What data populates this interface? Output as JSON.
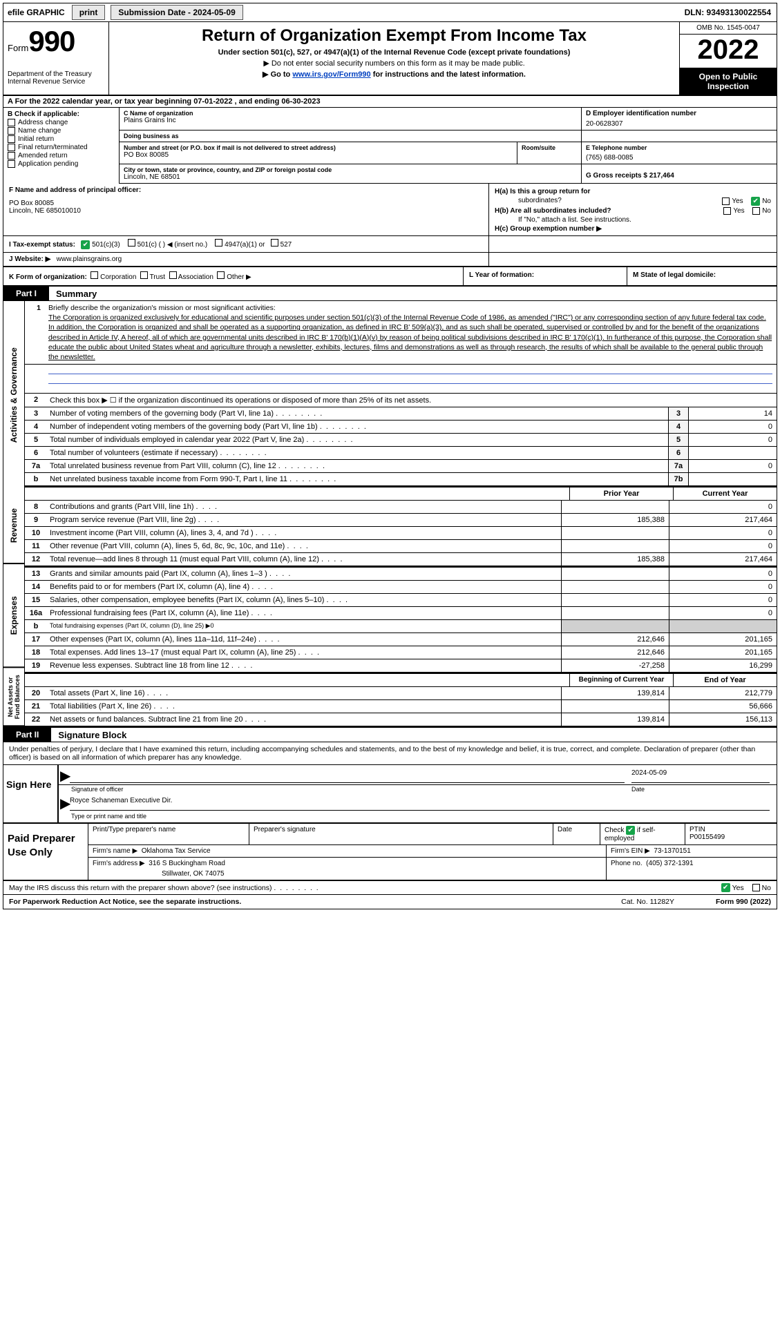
{
  "topbar": {
    "efile": "efile GRAPHIC",
    "print": "print",
    "sub_date_label": "Submission Date - 2024-05-09",
    "dln": "DLN: 93493130022554"
  },
  "header": {
    "form_prefix": "Form",
    "form_num": "990",
    "dept": "Department of the Treasury",
    "irs": "Internal Revenue Service",
    "title": "Return of Organization Exempt From Income Tax",
    "sub1": "Under section 501(c), 527, or 4947(a)(1) of the Internal Revenue Code (except private foundations)",
    "sub2_arrow": "▶ Do not enter social security numbers on this form as it may be made public.",
    "sub3_pre": "▶ Go to ",
    "sub3_link": "www.irs.gov/Form990",
    "sub3_post": " for instructions and the latest information.",
    "omb": "OMB No. 1545-0047",
    "year": "2022",
    "open": "Open to Public Inspection"
  },
  "row_a": "A For the 2022 calendar year, or tax year beginning 07-01-2022  , and ending 06-30-2023",
  "col_b": {
    "title": "B Check if applicable:",
    "items": [
      "Address change",
      "Name change",
      "Initial return",
      "Final return/terminated",
      "Amended return",
      "Application pending"
    ]
  },
  "col_c": {
    "name_lbl": "C Name of organization",
    "name": "Plains Grains Inc",
    "dba_lbl": "Doing business as",
    "dba": "",
    "street_lbl": "Number and street (or P.O. box if mail is not delivered to street address)",
    "street": "PO Box 80085",
    "room_lbl": "Room/suite",
    "city_lbl": "City or town, state or province, country, and ZIP or foreign postal code",
    "city": "Lincoln, NE  68501"
  },
  "col_d": {
    "ein_lbl": "D Employer identification number",
    "ein": "20-0628307",
    "tel_lbl": "E Telephone number",
    "tel": "(765) 688-0085",
    "gross_lbl": "G Gross receipts $ 217,464"
  },
  "row_f": {
    "lbl": "F  Name and address of principal officer:",
    "l1": "PO Box 80085",
    "l2": "Lincoln, NE  685010010"
  },
  "row_h": {
    "ha": "H(a)  Is this a group return for",
    "ha2": "subordinates?",
    "hb": "H(b)  Are all subordinates included?",
    "hb2": "If \"No,\" attach a list. See instructions.",
    "hc": "H(c)  Group exemption number ▶",
    "yes": "Yes",
    "no": "No"
  },
  "row_i": {
    "lbl": "I    Tax-exempt status:",
    "opts": [
      "501(c)(3)",
      "501(c) (  ) ◀ (insert no.)",
      "4947(a)(1) or",
      "527"
    ]
  },
  "row_j": {
    "lbl": "J   Website: ▶",
    "val": "www.plainsgrains.org"
  },
  "row_k": {
    "lbl": "K Form of organization:",
    "opts": [
      "Corporation",
      "Trust",
      "Association",
      "Other ▶"
    ],
    "l_lbl": "L Year of formation:",
    "l_val": "",
    "m_lbl": "M State of legal domicile:",
    "m_val": ""
  },
  "part1": {
    "tab": "Part I",
    "title": "Summary"
  },
  "side_labels": {
    "ag": "Activities & Governance",
    "rev": "Revenue",
    "exp": "Expenses",
    "na": "Net Assets or Fund Balances"
  },
  "mission": {
    "intro_num": "1",
    "intro": "Briefly describe the organization's mission or most significant activities:",
    "text": "The Corporation is organized exclusively for educational and scientific purposes under section 501(c)(3) of the Internal Revenue Code of 1986, as amended (\"IRC\") or any corresponding section of any future federal tax code. In addition, the Corporation is organized and shall be operated as a supporting organization, as defined in IRC B' 509(a)(3), and as such shall be operated, supervised or controlled by and for the benefit of the organizations described in Article IV, A hereof, all of which are governmental units described in IRC B' 170(b)(1)(A)(v) by reason of being political subdivisions described in IRC B' 170(c)(1). In furtherance of this purpose, the Corporation shall educate the public about United States wheat and agriculture through a newsletter, exhibits, lectures, films and demonstrations as well as through research, the results of which shall be available to the general public through the newsletter."
  },
  "lines_ag": [
    {
      "n": "2",
      "t": "Check this box ▶ ☐ if the organization discontinued its operations or disposed of more than 25% of its net assets."
    },
    {
      "n": "3",
      "t": "Number of voting members of the governing body (Part VI, line 1a)",
      "box": "3",
      "v": "14"
    },
    {
      "n": "4",
      "t": "Number of independent voting members of the governing body (Part VI, line 1b)",
      "box": "4",
      "v": "0"
    },
    {
      "n": "5",
      "t": "Total number of individuals employed in calendar year 2022 (Part V, line 2a)",
      "box": "5",
      "v": "0"
    },
    {
      "n": "6",
      "t": "Total number of volunteers (estimate if necessary)",
      "box": "6",
      "v": ""
    },
    {
      "n": "7a",
      "t": "Total unrelated business revenue from Part VIII, column (C), line 12",
      "box": "7a",
      "v": "0"
    },
    {
      "n": "b",
      "t": "Net unrelated business taxable income from Form 990-T, Part I, line 11",
      "box": "7b",
      "v": ""
    }
  ],
  "colhdr": {
    "prior": "Prior Year",
    "current": "Current Year"
  },
  "lines_rev": [
    {
      "n": "8",
      "t": "Contributions and grants (Part VIII, line 1h)",
      "p": "",
      "c": "0"
    },
    {
      "n": "9",
      "t": "Program service revenue (Part VIII, line 2g)",
      "p": "185,388",
      "c": "217,464"
    },
    {
      "n": "10",
      "t": "Investment income (Part VIII, column (A), lines 3, 4, and 7d )",
      "p": "",
      "c": "0"
    },
    {
      "n": "11",
      "t": "Other revenue (Part VIII, column (A), lines 5, 6d, 8c, 9c, 10c, and 11e)",
      "p": "",
      "c": "0"
    },
    {
      "n": "12",
      "t": "Total revenue—add lines 8 through 11 (must equal Part VIII, column (A), line 12)",
      "p": "185,388",
      "c": "217,464"
    }
  ],
  "lines_exp": [
    {
      "n": "13",
      "t": "Grants and similar amounts paid (Part IX, column (A), lines 1–3 )",
      "p": "",
      "c": "0"
    },
    {
      "n": "14",
      "t": "Benefits paid to or for members (Part IX, column (A), line 4)",
      "p": "",
      "c": "0"
    },
    {
      "n": "15",
      "t": "Salaries, other compensation, employee benefits (Part IX, column (A), lines 5–10)",
      "p": "",
      "c": "0"
    },
    {
      "n": "16a",
      "t": "Professional fundraising fees (Part IX, column (A), line 11e)",
      "p": "",
      "c": "0"
    },
    {
      "n": "b",
      "t": "Total fundraising expenses (Part IX, column (D), line 25) ▶0",
      "grey": true
    },
    {
      "n": "17",
      "t": "Other expenses (Part IX, column (A), lines 11a–11d, 11f–24e)",
      "p": "212,646",
      "c": "201,165"
    },
    {
      "n": "18",
      "t": "Total expenses. Add lines 13–17 (must equal Part IX, column (A), line 25)",
      "p": "212,646",
      "c": "201,165"
    },
    {
      "n": "19",
      "t": "Revenue less expenses. Subtract line 18 from line 12",
      "p": "-27,258",
      "c": "16,299"
    }
  ],
  "colhdr2": {
    "prior": "Beginning of Current Year",
    "current": "End of Year"
  },
  "lines_na": [
    {
      "n": "20",
      "t": "Total assets (Part X, line 16)",
      "p": "139,814",
      "c": "212,779"
    },
    {
      "n": "21",
      "t": "Total liabilities (Part X, line 26)",
      "p": "",
      "c": "56,666"
    },
    {
      "n": "22",
      "t": "Net assets or fund balances. Subtract line 21 from line 20",
      "p": "139,814",
      "c": "156,113"
    }
  ],
  "part2": {
    "tab": "Part II",
    "title": "Signature Block"
  },
  "sig_intro": "Under penalties of perjury, I declare that I have examined this return, including accompanying schedules and statements, and to the best of my knowledge and belief, it is true, correct, and complete. Declaration of preparer (other than officer) is based on all information of which preparer has any knowledge.",
  "sign": {
    "lbl": "Sign Here",
    "sig_cap": "Signature of officer",
    "date": "2024-05-09",
    "date_cap": "Date",
    "name": "Royce Schaneman  Executive Dir.",
    "name_cap": "Type or print name and title"
  },
  "paid": {
    "lbl": "Paid Preparer Use Only",
    "h1": "Print/Type preparer's name",
    "h2": "Preparer's signature",
    "h3": "Date",
    "h4_pre": "Check",
    "h4_post": "if self-employed",
    "h5": "PTIN",
    "ptin": "P00155499",
    "firm_lbl": "Firm's name    ▶",
    "firm": "Oklahoma Tax Service",
    "ein_lbl": "Firm's EIN ▶",
    "ein": "73-1370151",
    "addr_lbl": "Firm's address ▶",
    "addr1": "316 S Buckingham Road",
    "addr2": "Stillwater, OK  74075",
    "phone_lbl": "Phone no.",
    "phone": "(405) 372-1391"
  },
  "footer": {
    "q": "May the IRS discuss this return with the preparer shown above? (see instructions)",
    "yes": "Yes",
    "no": "No",
    "pra": "For Paperwork Reduction Act Notice, see the separate instructions.",
    "cat": "Cat. No. 11282Y",
    "form": "Form 990 (2022)"
  }
}
